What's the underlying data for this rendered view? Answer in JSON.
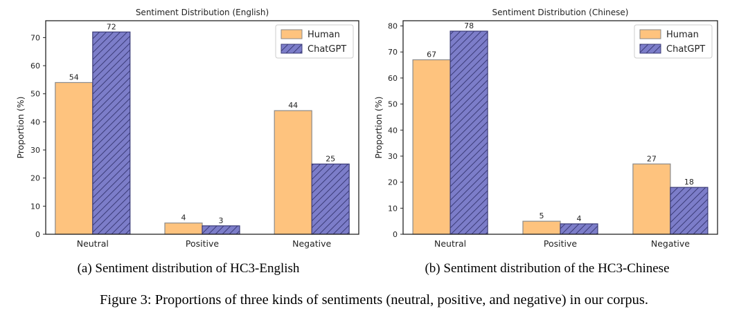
{
  "colors": {
    "human_fill": "#fec37e",
    "human_edge": "#8a8a8a",
    "chatgpt_fill": "#7c7dc9",
    "chatgpt_edge": "#3b3c78",
    "hatch": "#3b3c78",
    "axis": "#222222"
  },
  "chart_data": [
    {
      "type": "bar",
      "title": "Sentiment Distribution (English)",
      "ylabel": "Proportion (%)",
      "xlabel": "",
      "categories": [
        "Neutral",
        "Positive",
        "Negative"
      ],
      "ylim": [
        0,
        76
      ],
      "yticks": [
        0,
        10,
        20,
        30,
        40,
        50,
        60,
        70
      ],
      "legend_position": "top-right",
      "series": [
        {
          "name": "Human",
          "values": [
            54,
            4,
            44
          ]
        },
        {
          "name": "ChatGPT",
          "values": [
            72,
            3,
            25
          ]
        }
      ],
      "caption": "(a) Sentiment distribution of HC3-English"
    },
    {
      "type": "bar",
      "title": "Sentiment Distribution (Chinese)",
      "ylabel": "Proportion (%)",
      "xlabel": "",
      "categories": [
        "Neutral",
        "Positive",
        "Negative"
      ],
      "ylim": [
        0,
        82
      ],
      "yticks": [
        0,
        10,
        20,
        30,
        40,
        50,
        60,
        70,
        80
      ],
      "legend_position": "top-right",
      "series": [
        {
          "name": "Human",
          "values": [
            67,
            5,
            27
          ]
        },
        {
          "name": "ChatGPT",
          "values": [
            78,
            4,
            18
          ]
        }
      ],
      "caption": "(b) Sentiment distribution of the HC3-Chinese"
    }
  ],
  "figure_caption": "Figure 3: Proportions of three kinds of sentiments (neutral, positive, and negative) in our corpus."
}
